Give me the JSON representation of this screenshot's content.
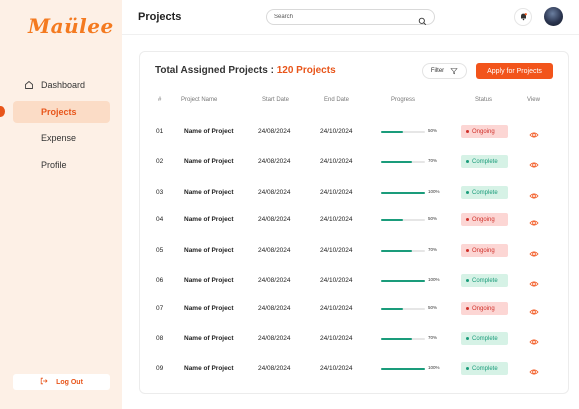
{
  "app": {
    "logo_text": "Maülee"
  },
  "sidebar": {
    "items": [
      {
        "label": "Dashboard",
        "icon": "home-icon"
      },
      {
        "label": "Projects",
        "active": true
      },
      {
        "label": "Expense"
      },
      {
        "label": "Profile"
      }
    ],
    "logout_label": "Log Out",
    "logout_icon": "logout-icon"
  },
  "header": {
    "title": "Projects",
    "search_placeholder": "Search",
    "icons": [
      "search-icon",
      "bell-icon",
      "avatar"
    ]
  },
  "card": {
    "title_prefix": "Total Assigned Projects : ",
    "title_count": "120 Projects",
    "filter_label": "Filter",
    "apply_label": "Apply for Projects"
  },
  "table": {
    "columns": [
      "#",
      "Project Name",
      "Start Date",
      "End Date",
      "Progress",
      "Status",
      "View"
    ],
    "rows": [
      {
        "num": "01",
        "name": "Name of Project",
        "start": "24/08/2024",
        "end": "24/10/2024",
        "progress": 50,
        "progress_label": "50%",
        "status": "Ongoing"
      },
      {
        "num": "02",
        "name": "Name of Project",
        "start": "24/08/2024",
        "end": "24/10/2024",
        "progress": 70,
        "progress_label": "70%",
        "status": "Complete"
      },
      {
        "num": "03",
        "name": "Name of Project",
        "start": "24/08/2024",
        "end": "24/10/2024",
        "progress": 100,
        "progress_label": "100%",
        "status": "Complete"
      },
      {
        "num": "04",
        "name": "Name of Project",
        "start": "24/08/2024",
        "end": "24/10/2024",
        "progress": 50,
        "progress_label": "50%",
        "status": "Ongoing"
      },
      {
        "num": "05",
        "name": "Name of Project",
        "start": "24/08/2024",
        "end": "24/10/2024",
        "progress": 70,
        "progress_label": "70%",
        "status": "Ongoing"
      },
      {
        "num": "06",
        "name": "Name of Project",
        "start": "24/08/2024",
        "end": "24/10/2024",
        "progress": 100,
        "progress_label": "100%",
        "status": "Complete"
      },
      {
        "num": "07",
        "name": "Name of Project",
        "start": "24/08/2024",
        "end": "24/10/2024",
        "progress": 50,
        "progress_label": "50%",
        "status": "Ongoing"
      },
      {
        "num": "08",
        "name": "Name of Project",
        "start": "24/08/2024",
        "end": "24/10/2024",
        "progress": 70,
        "progress_label": "70%",
        "status": "Complete"
      },
      {
        "num": "09",
        "name": "Name of Project",
        "start": "24/08/2024",
        "end": "24/10/2024",
        "progress": 100,
        "progress_label": "100%",
        "status": "Complete"
      }
    ]
  },
  "colors": {
    "accent": "#f2541b",
    "sidebar_bg": "#fdf0e6",
    "ongoing": "#d0302a",
    "complete": "#1a9c7b"
  }
}
